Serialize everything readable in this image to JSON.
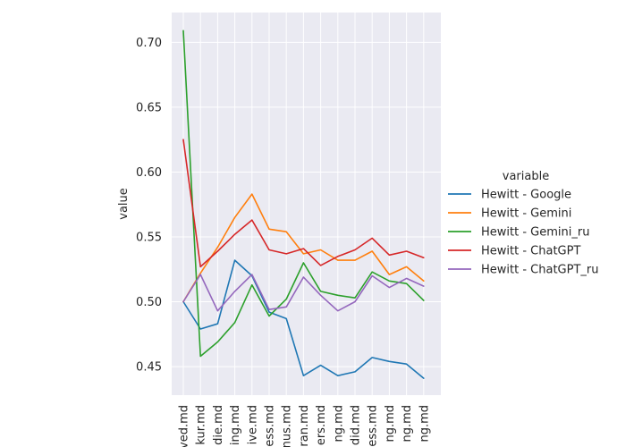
{
  "chart_data": {
    "type": "line",
    "title": "",
    "xlabel": "",
    "ylabel": "value",
    "ylim": [
      0.428,
      0.723
    ],
    "yticks": [
      "0.45",
      "0.50",
      "0.55",
      "0.60",
      "0.65",
      "0.70"
    ],
    "grid": true,
    "legend_position": "right",
    "legend_title": "variable",
    "categories": [
      "ved.md",
      "kur.md",
      "die.md",
      "ing.md",
      "ive.md",
      "ess.md",
      "nus.md",
      "ran.md",
      "ers.md",
      "ng.md",
      "did.md",
      "ess.md",
      "ng.md",
      "ng.md",
      "ng.md"
    ],
    "series": [
      {
        "name": "Hewitt - Google",
        "color": "#1f77b4",
        "values": [
          0.5,
          0.479,
          0.483,
          0.532,
          0.52,
          0.492,
          0.487,
          0.443,
          0.451,
          0.443,
          0.446,
          0.457,
          0.454,
          0.452,
          0.441
        ]
      },
      {
        "name": "Hewitt - Gemini",
        "color": "#ff7f0e",
        "values": [
          0.5,
          0.522,
          0.542,
          0.565,
          0.583,
          0.556,
          0.554,
          0.537,
          0.54,
          0.532,
          0.532,
          0.539,
          0.521,
          0.527,
          0.516
        ]
      },
      {
        "name": "Hewitt - Gemini_ru",
        "color": "#2ca02c",
        "values": [
          0.709,
          0.458,
          0.469,
          0.484,
          0.513,
          0.489,
          0.502,
          0.53,
          0.508,
          0.505,
          0.503,
          0.523,
          0.516,
          0.514,
          0.501
        ]
      },
      {
        "name": "Hewitt - ChatGPT",
        "color": "#d62728",
        "values": [
          0.625,
          0.527,
          0.539,
          0.552,
          0.563,
          0.54,
          0.537,
          0.541,
          0.528,
          0.535,
          0.54,
          0.549,
          0.536,
          0.539,
          0.534
        ]
      },
      {
        "name": "Hewitt - ChatGPT_ru",
        "color": "#9467bd",
        "values": [
          0.5,
          0.521,
          0.493,
          0.508,
          0.521,
          0.494,
          0.496,
          0.519,
          0.505,
          0.493,
          0.5,
          0.52,
          0.511,
          0.518,
          0.512
        ]
      }
    ]
  }
}
